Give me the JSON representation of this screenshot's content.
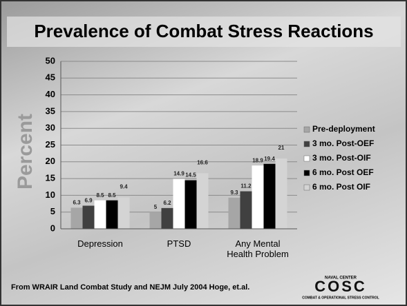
{
  "chart_data": {
    "type": "bar",
    "title": "Prevalence of Combat Stress Reactions",
    "y_label": "Percent",
    "categories": [
      "Depression",
      "PTSD",
      "Any Mental Health Problem"
    ],
    "series": [
      {
        "name": "Pre-deployment",
        "color": "#a6a6a6",
        "values": [
          6.3,
          5,
          9.3
        ]
      },
      {
        "name": "3 mo. Post-OEF",
        "color": "#404040",
        "values": [
          6.9,
          6.2,
          11.2
        ]
      },
      {
        "name": "3 mo. Post-OIF",
        "color": "#ffffff",
        "values": [
          8.5,
          14.9,
          18.9
        ]
      },
      {
        "name": "6 mo. Post OEF",
        "color": "#000000",
        "values": [
          8.5,
          14.5,
          19.4
        ]
      },
      {
        "name": "6 mo. Post OIF",
        "color": "#d4d4d4",
        "values": [
          9.4,
          16.6,
          21
        ]
      }
    ],
    "ylim": [
      0,
      50
    ],
    "yticks": [
      0,
      5,
      10,
      15,
      20,
      25,
      30,
      35,
      40,
      45,
      50
    ],
    "grid": true
  },
  "footer": "From WRAIR Land Combat Study and NEJM July 2004 Hoge, et.al.",
  "logo": {
    "top": "NAVAL CENTER",
    "name": "COSC",
    "bottom": "COMBAT & OPERATIONAL STRESS CONTROL"
  }
}
